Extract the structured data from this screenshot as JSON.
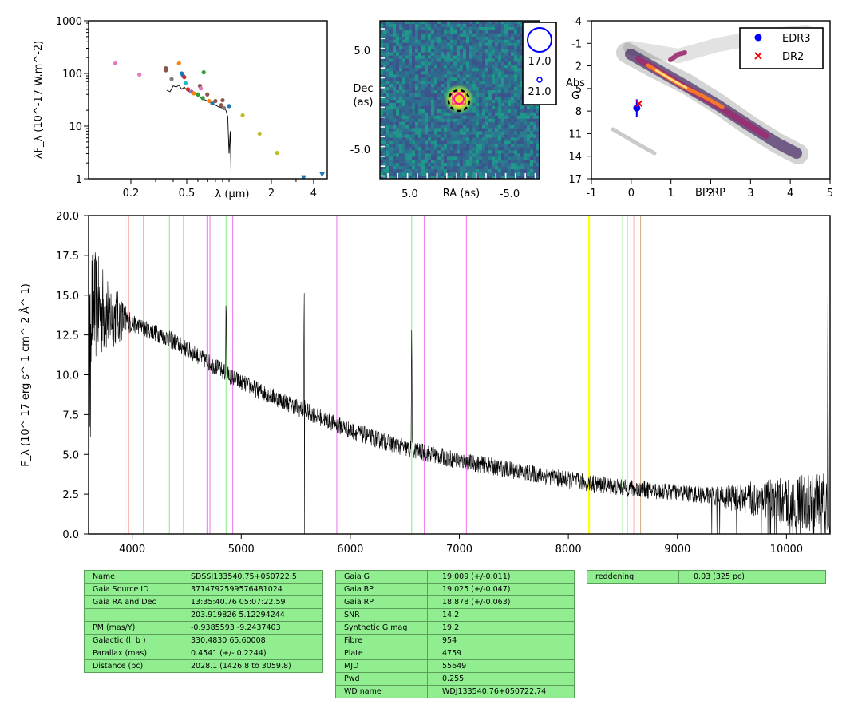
{
  "chart_data": [
    {
      "type": "scatter",
      "panel": "sed",
      "xlabel": "λ (μm)",
      "ylabel": "λF_λ (10^-17 W.m^-2)",
      "x_scale": "log",
      "y_scale": "log",
      "xlim": [
        0.1,
        5.0
      ],
      "ylim": [
        1,
        1000
      ],
      "x_ticks": [
        {
          "v": 0.2,
          "label": "0.2"
        },
        {
          "v": 0.5,
          "label": "0.5"
        },
        {
          "v": 2,
          "label": "2"
        },
        {
          "v": 4,
          "label": "4"
        }
      ],
      "y_ticks": [
        {
          "v": 1,
          "label": "1"
        },
        {
          "v": 10,
          "label": "10"
        },
        {
          "v": 100,
          "label": "100"
        },
        {
          "v": 1000,
          "label": "1000"
        }
      ],
      "points": [
        {
          "x": 0.155,
          "y": 155,
          "color": "#e377c2"
        },
        {
          "x": 0.23,
          "y": 95,
          "color": "#e377c2"
        },
        {
          "x": 0.355,
          "y": 115,
          "color": "#8c564b"
        },
        {
          "x": 0.355,
          "y": 125,
          "color": "#8c564b"
        },
        {
          "x": 0.39,
          "y": 78,
          "color": "#7f7f7f"
        },
        {
          "x": 0.44,
          "y": 155,
          "color": "#ff7f0e"
        },
        {
          "x": 0.46,
          "y": 100,
          "color": "#1f77b4"
        },
        {
          "x": 0.47,
          "y": 90,
          "color": "#1f77b4"
        },
        {
          "x": 0.48,
          "y": 85,
          "color": "#d62728"
        },
        {
          "x": 0.49,
          "y": 65,
          "color": "#17becf"
        },
        {
          "x": 0.51,
          "y": 50,
          "color": "#d62728"
        },
        {
          "x": 0.54,
          "y": 45,
          "color": "#9467bd"
        },
        {
          "x": 0.56,
          "y": 42,
          "color": "#ff7f0e"
        },
        {
          "x": 0.6,
          "y": 40,
          "color": "#2ca02c"
        },
        {
          "x": 0.62,
          "y": 58,
          "color": "#8c564b"
        },
        {
          "x": 0.63,
          "y": 52,
          "color": "#e377c2"
        },
        {
          "x": 0.65,
          "y": 34,
          "color": "#2ca02c"
        },
        {
          "x": 0.66,
          "y": 105,
          "color": "#2ca02c"
        },
        {
          "x": 0.7,
          "y": 40,
          "color": "#8c564b"
        },
        {
          "x": 0.72,
          "y": 30,
          "color": "#ff7f0e"
        },
        {
          "x": 0.76,
          "y": 27,
          "color": "#1f77b4"
        },
        {
          "x": 0.8,
          "y": 30,
          "color": "#8c564b"
        },
        {
          "x": 0.88,
          "y": 25,
          "color": "#8c564b"
        },
        {
          "x": 0.9,
          "y": 31,
          "color": "#8c564b"
        },
        {
          "x": 0.92,
          "y": 22,
          "color": "#7f7f7f"
        },
        {
          "x": 1.0,
          "y": 24,
          "color": "#1f77b4"
        },
        {
          "x": 1.25,
          "y": 16,
          "color": "#bcbd22"
        },
        {
          "x": 1.65,
          "y": 7.2,
          "color": "#bcbd22"
        },
        {
          "x": 2.2,
          "y": 3.1,
          "color": "#bcbd22"
        }
      ],
      "upper_limits": [
        {
          "x": 3.4,
          "y": 1.05,
          "color": "#1f77b4"
        },
        {
          "x": 4.6,
          "y": 1.2,
          "color": "#1f77b4"
        }
      ],
      "spectrum": [
        [
          0.36,
          48
        ],
        [
          0.38,
          45
        ],
        [
          0.4,
          58
        ],
        [
          0.42,
          55
        ],
        [
          0.44,
          60
        ],
        [
          0.46,
          50
        ],
        [
          0.48,
          55
        ],
        [
          0.5,
          48
        ],
        [
          0.52,
          45
        ],
        [
          0.55,
          42
        ],
        [
          0.58,
          40
        ],
        [
          0.61,
          36
        ],
        [
          0.65,
          33
        ],
        [
          0.7,
          30
        ],
        [
          0.75,
          27
        ],
        [
          0.8,
          25
        ],
        [
          0.85,
          23
        ],
        [
          0.9,
          22
        ],
        [
          0.95,
          20
        ],
        [
          0.98,
          15
        ],
        [
          1.0,
          3
        ],
        [
          1.02,
          8
        ],
        [
          1.035,
          1.0
        ]
      ]
    },
    {
      "type": "heatmap",
      "panel": "image",
      "xlabel": "RA (as)",
      "ylabel": "Dec (as)",
      "xlim": [
        8,
        -8
      ],
      "ylim": [
        -8,
        8
      ],
      "x_ticks": [
        {
          "v": 5,
          "label": "5.0"
        },
        {
          "v": -5,
          "label": "-5.0"
        }
      ],
      "y_ticks": [
        {
          "v": 5,
          "label": "5.0"
        },
        {
          "v": -5,
          "label": "-5.0"
        }
      ],
      "source": {
        "x": 0.0,
        "y": 0.0
      },
      "legend": [
        {
          "label": "17.0",
          "size": "large"
        },
        {
          "label": "21.0",
          "size": "small"
        }
      ]
    },
    {
      "type": "scatter",
      "panel": "hrd",
      "xlabel": "BP-RP",
      "ylabel": "Abs G",
      "xlim": [
        -1,
        5
      ],
      "ylim": [
        17,
        -4
      ],
      "x_ticks": [
        {
          "v": -1,
          "label": "-1"
        },
        {
          "v": 0,
          "label": "0"
        },
        {
          "v": 1,
          "label": "1"
        },
        {
          "v": 2,
          "label": "2"
        },
        {
          "v": 3,
          "label": "3"
        },
        {
          "v": 4,
          "label": "4"
        },
        {
          "v": 5,
          "label": "5"
        }
      ],
      "y_ticks": [
        {
          "v": -4,
          "label": "-4"
        },
        {
          "v": -1,
          "label": "-1"
        },
        {
          "v": 2,
          "label": "2"
        },
        {
          "v": 5,
          "label": "5"
        },
        {
          "v": 8,
          "label": "8"
        },
        {
          "v": 11,
          "label": "11"
        },
        {
          "v": 14,
          "label": "14"
        },
        {
          "v": 17,
          "label": "17"
        }
      ],
      "series": [
        {
          "name": "EDR3",
          "x": 0.14,
          "y": 7.6,
          "color": "#0000ff",
          "marker": "circle"
        },
        {
          "name": "DR2",
          "x": 0.2,
          "y": 7.0,
          "color": "#ff0000",
          "marker": "x"
        }
      ],
      "legend_position": "top-right"
    },
    {
      "type": "line",
      "panel": "spectrum",
      "xlabel": "",
      "ylabel": "F_λ (10^-17 erg s^-1 cm^-2 Å^-1)",
      "xlim": [
        3600,
        10400
      ],
      "ylim": [
        0,
        20
      ],
      "x_ticks": [
        {
          "v": 4000,
          "label": "4000"
        },
        {
          "v": 5000,
          "label": "5000"
        },
        {
          "v": 6000,
          "label": "6000"
        },
        {
          "v": 7000,
          "label": "7000"
        },
        {
          "v": 8000,
          "label": "8000"
        },
        {
          "v": 9000,
          "label": "9000"
        },
        {
          "v": 10000,
          "label": "10000"
        }
      ],
      "y_ticks": [
        {
          "v": 0,
          "label": "0.0"
        },
        {
          "v": 2.5,
          "label": "2.5"
        },
        {
          "v": 5,
          "label": "5.0"
        },
        {
          "v": 7.5,
          "label": "7.5"
        },
        {
          "v": 10,
          "label": "10.0"
        },
        {
          "v": 12.5,
          "label": "12.5"
        },
        {
          "v": 15,
          "label": "15.0"
        },
        {
          "v": 17.5,
          "label": "17.5"
        },
        {
          "v": 20,
          "label": "20.0"
        }
      ],
      "continuum": [
        [
          3600,
          14.5
        ],
        [
          3800,
          13.8
        ],
        [
          4000,
          13.2
        ],
        [
          4300,
          12.4
        ],
        [
          4600,
          11.2
        ],
        [
          5000,
          9.5
        ],
        [
          5500,
          8.0
        ],
        [
          6000,
          6.5
        ],
        [
          6500,
          5.4
        ],
        [
          7000,
          4.6
        ],
        [
          7500,
          4.0
        ],
        [
          8000,
          3.4
        ],
        [
          8500,
          2.9
        ],
        [
          9000,
          2.6
        ],
        [
          9500,
          2.3
        ],
        [
          10000,
          2.0
        ],
        [
          10400,
          1.8
        ]
      ],
      "emission_lines": [
        [
          4861,
          15.2
        ],
        [
          5577,
          15.8
        ],
        [
          6563,
          13.5
        ],
        [
          10380,
          15.4
        ]
      ],
      "vlines": [
        {
          "x": 3934,
          "color": "#ffb6b6"
        },
        {
          "x": 3969,
          "color": "#ffb6b6"
        },
        {
          "x": 4102,
          "color": "#90ee90"
        },
        {
          "x": 4341,
          "color": "#90ee90"
        },
        {
          "x": 4471,
          "color": "#ee82ee"
        },
        {
          "x": 4686,
          "color": "#ee82ee"
        },
        {
          "x": 4713,
          "color": "#ee82ee"
        },
        {
          "x": 4861,
          "color": "#90ee90"
        },
        {
          "x": 4922,
          "color": "#ee82ee"
        },
        {
          "x": 5876,
          "color": "#ee82ee"
        },
        {
          "x": 6563,
          "color": "#90ee90"
        },
        {
          "x": 6678,
          "color": "#ee82ee"
        },
        {
          "x": 7065,
          "color": "#ee82ee"
        },
        {
          "x": 8190,
          "color": "#ffff00"
        },
        {
          "x": 8498,
          "color": "#90ee90"
        },
        {
          "x": 8542,
          "color": "#ffb6b6"
        },
        {
          "x": 8600,
          "color": "#ffb6b6"
        },
        {
          "x": 8662,
          "color": "#d2b48c"
        }
      ]
    }
  ],
  "table1": [
    {
      "label": "Name",
      "value": "SDSSJ133540.75+050722.5"
    },
    {
      "label": "Gaia Source ID",
      "value": "3714792599576481024"
    },
    {
      "label": "Gaia RA and Dec",
      "value": "13:35:40.76    05:07:22.59"
    },
    {
      "label": "",
      "value": "203.919826    5.12294244"
    },
    {
      "label": "PM (mas/Y)",
      "value": "-0.9385593    -9.2437403"
    },
    {
      "label": "Galactic (l, b )",
      "value": "330.4830    65.60008"
    },
    {
      "label": "Parallax (mas)",
      "value": "0.4541 (+/- 0.2244)"
    },
    {
      "label": "Distance (pc)",
      "value": "2028.1 (1426.8 to 3059.8)"
    }
  ],
  "table2": [
    {
      "label": "Gaia G",
      "value": "19.009 (+/-0.011)"
    },
    {
      "label": "Gaia BP",
      "value": "19.025 (+/-0.047)"
    },
    {
      "label": "Gaia RP",
      "value": "18.878 (+/-0.063)"
    },
    {
      "label": "SNR",
      "value": "14.2"
    },
    {
      "label": "Synthetic G mag",
      "value": "19.2"
    },
    {
      "label": "Fibre",
      "value": "954"
    },
    {
      "label": "Plate",
      "value": "4759"
    },
    {
      "label": "MJD",
      "value": "55649"
    },
    {
      "label": "Pwd",
      "value": "0.255"
    },
    {
      "label": "WD name",
      "value": "WDJ133540.76+050722.74"
    }
  ],
  "table3": [
    {
      "label": "reddening",
      "value": "0.03 (325 pc)"
    }
  ]
}
